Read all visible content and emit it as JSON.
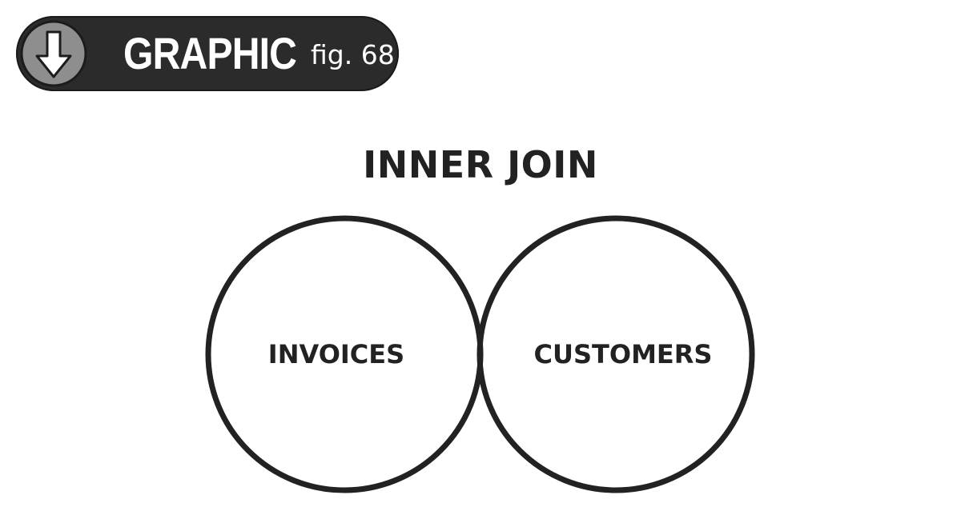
{
  "badge": {
    "label": "GRAPHIC",
    "figure": "fig. 68",
    "icon": "download-arrow-icon"
  },
  "diagram": {
    "title": "INNER JOIN",
    "left_set": "INVOICES",
    "right_set": "CUSTOMERS",
    "highlight": "intersection",
    "colors": {
      "outline": "#222222",
      "intersection_fill": "#a9a9a9",
      "badge_background": "#2b2b2b",
      "badge_icon_fill": "#8e8e8e"
    }
  }
}
